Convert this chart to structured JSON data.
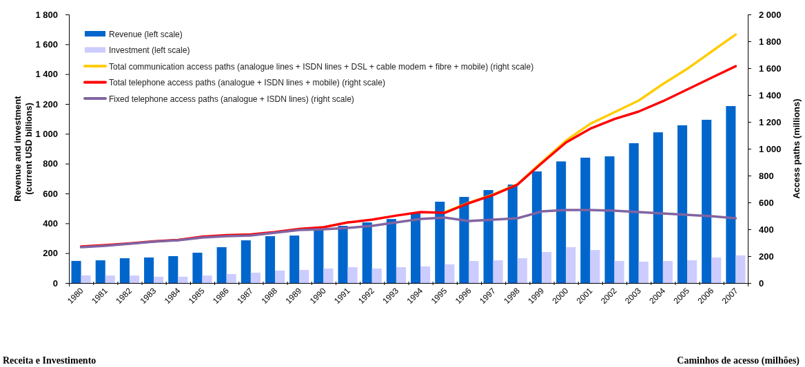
{
  "chart_data": {
    "type": "bar",
    "categories": [
      "1980",
      "1981",
      "1982",
      "1983",
      "1984",
      "1985",
      "1986",
      "1987",
      "1988",
      "1989",
      "1990",
      "1991",
      "1992",
      "1993",
      "1994",
      "1995",
      "1996",
      "1997",
      "1998",
      "1999",
      "2000",
      "2001",
      "2002",
      "2003",
      "2004",
      "2005",
      "2006",
      "2007"
    ],
    "ylabel": "Revenue and investment\n(current USD billions)",
    "y2label": "Access paths  (millions)",
    "ylim": [
      0,
      1800
    ],
    "yticks": [
      0,
      200,
      400,
      600,
      800,
      {
        "value": 1000,
        "label": "1 000"
      },
      {
        "value": 1200,
        "label": "1 200"
      },
      {
        "value": 1400,
        "label": "1 400"
      },
      {
        "value": 1600,
        "label": "1 600"
      },
      {
        "value": 1800,
        "label": "1 800"
      }
    ],
    "y2lim": [
      0,
      2000
    ],
    "y2ticks": [
      0,
      200,
      400,
      600,
      800,
      {
        "value": 1000,
        "label": "1 000"
      },
      {
        "value": 1200,
        "label": "1 200"
      },
      {
        "value": 1400,
        "label": "1 400"
      },
      {
        "value": 1600,
        "label": "1 600"
      },
      {
        "value": 1800,
        "label": "1 800"
      },
      {
        "value": 2000,
        "label": "2 000"
      }
    ],
    "grid": false,
    "legend": "top left",
    "series": [
      {
        "name": "Revenue (left scale)",
        "color": "#0066cc",
        "values": [
          148,
          152,
          166,
          171,
          180,
          203,
          240,
          286,
          314,
          318,
          365,
          383,
          406,
          429,
          470,
          545,
          577,
          623,
          660,
          748,
          815,
          840,
          849,
          937,
          1010,
          1057,
          1094,
          1186
        ]
      },
      {
        "name": "Investment (left scale)",
        "color": "#ccccff",
        "values": [
          51,
          50,
          50,
          42,
          42,
          50,
          60,
          69,
          83,
          88,
          97,
          106,
          97,
          106,
          111,
          125,
          148,
          152,
          166,
          208,
          240,
          221,
          148,
          143,
          148,
          152,
          171,
          185
        ]
      },
      {
        "name": "Total communication access paths (analogue lines + ISDN lines + DSL + cable modem + fibre + mobile) (right scale)",
        "type": "line",
        "axis": "y2",
        "color": "#ffcc00",
        "values": [
          null,
          null,
          null,
          null,
          null,
          null,
          null,
          null,
          null,
          null,
          null,
          null,
          null,
          null,
          null,
          528,
          598,
          660,
          735,
          900,
          1060,
          1185,
          1272,
          1359,
          1482,
          1595,
          1723,
          1851
        ]
      },
      {
        "name": "Total telephone access paths (analogue + ISDN lines + mobile) (right scale)",
        "type": "line",
        "axis": "y2",
        "color": "#ff0000",
        "values": [
          272,
          282,
          295,
          310,
          321,
          345,
          356,
          362,
          380,
          403,
          415,
          451,
          472,
          502,
          528,
          523,
          595,
          656,
          733,
          892,
          1046,
          1149,
          1221,
          1277,
          1354,
          1441,
          1528,
          1615
        ]
      },
      {
        "name": "Fixed telephone access paths (analogue + ISDN lines) (right scale)",
        "type": "line",
        "axis": "y2",
        "color": "#8064a2",
        "values": [
          267,
          277,
          292,
          308,
          318,
          338,
          349,
          354,
          374,
          395,
          400,
          410,
          426,
          451,
          477,
          487,
          462,
          472,
          482,
          533,
          544,
          544,
          538,
          528,
          518,
          508,
          497,
          482
        ]
      }
    ],
    "annotations": [
      "Receita e Investimento",
      "Caminhos de acesso (milhões)"
    ]
  }
}
